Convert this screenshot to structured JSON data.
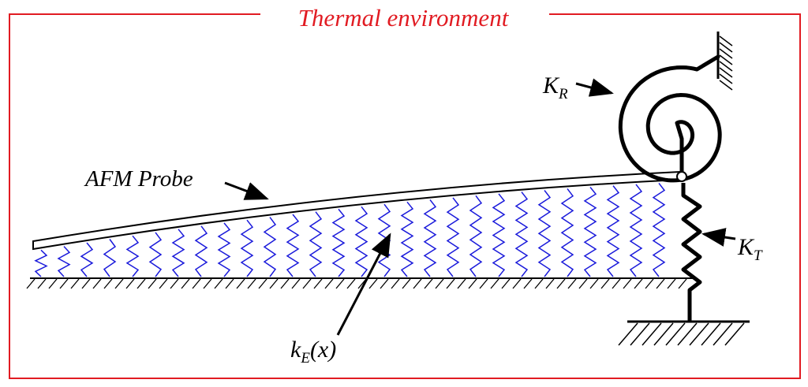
{
  "frame": {
    "title": "Thermal environment",
    "border_color": "#e11b22",
    "title_color": "#e11b22"
  },
  "labels": {
    "probe": "AFM Probe",
    "rotational_spring": {
      "base": "K",
      "sub": "R"
    },
    "translational_spring": {
      "base": "K",
      "sub": "T"
    },
    "distributed_spring": {
      "base": "k",
      "sub": "E",
      "tail": "(x)"
    }
  },
  "colors": {
    "interaction_springs": "#1a1adb",
    "structure": "#000000"
  }
}
